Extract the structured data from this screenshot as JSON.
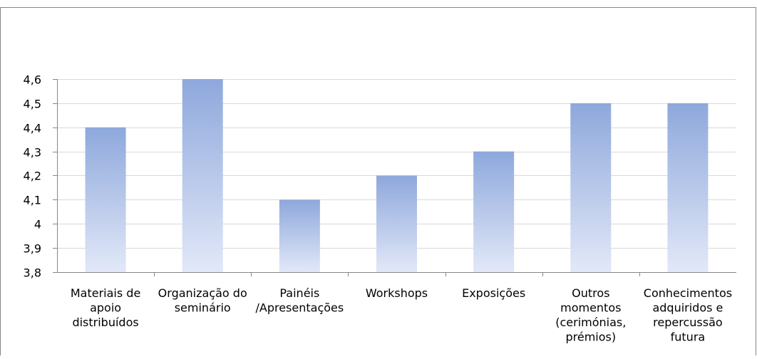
{
  "chart_data": {
    "type": "bar",
    "title": "",
    "xlabel": "",
    "ylabel": "",
    "categories": [
      "Materiais de apoio distribuídos",
      "Organização do seminário",
      "Painéis /Apresentações",
      "Workshops",
      "Exposições",
      "Outros momentos (cerimónias, prémios)",
      "Conhecimentos adquiridos e repercussão futura"
    ],
    "category_lines": [
      [
        "Materiais de",
        "apoio",
        "distribuídos"
      ],
      [
        "Organização do",
        "seminário"
      ],
      [
        "Painéis",
        "/Apresentações"
      ],
      [
        "Workshops"
      ],
      [
        "Exposições"
      ],
      [
        "Outros",
        "momentos",
        "(cerimónias,",
        "prémios)"
      ],
      [
        "Conhecimentos",
        "adquiridos e",
        "repercussão",
        "futura"
      ]
    ],
    "values": [
      4.4,
      4.6,
      4.1,
      4.2,
      4.3,
      4.5,
      4.5
    ],
    "ylim": [
      3.8,
      4.6
    ],
    "yticks": [
      3.8,
      3.9,
      4.0,
      4.1,
      4.2,
      4.3,
      4.4,
      4.5,
      4.6
    ],
    "ytick_labels": [
      "3,8",
      "3,9",
      "4",
      "4,1",
      "4,2",
      "4,3",
      "4,4",
      "4,5",
      "4,6"
    ],
    "grid": true,
    "legend": "none",
    "colors": {
      "bar_top": "#8ea8dc",
      "bar_bottom": "#e2e8f8",
      "grid": "#d9d9d9",
      "axis": "#868686",
      "frame": "#868686"
    }
  }
}
